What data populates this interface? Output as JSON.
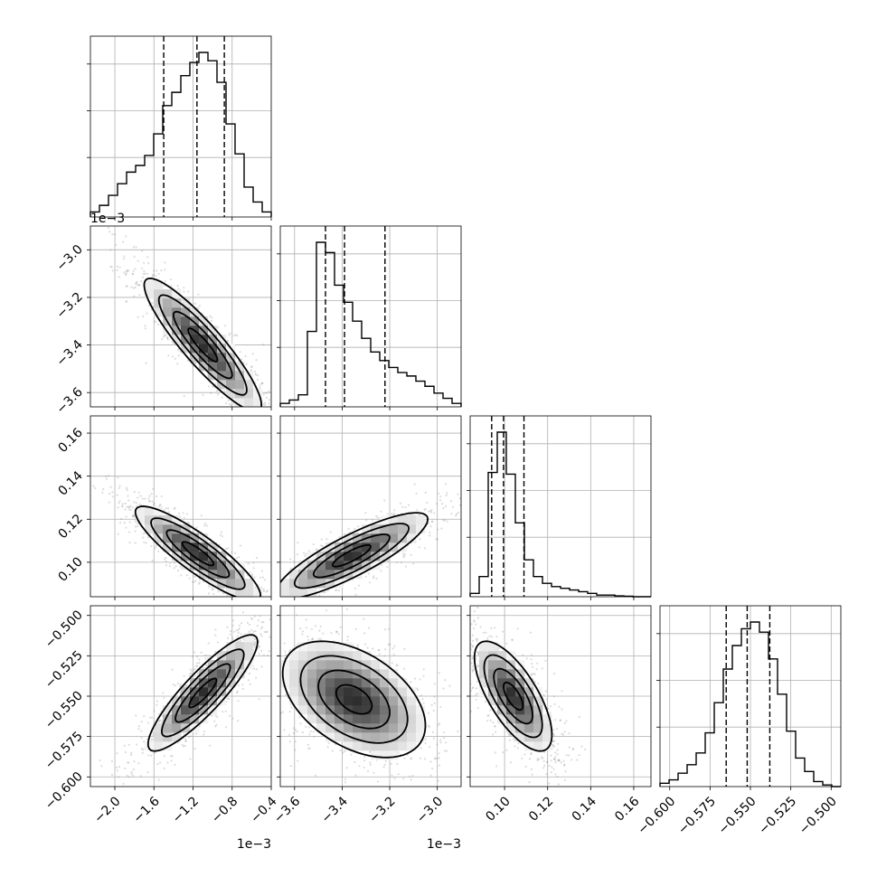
{
  "chart_data": {
    "type": "corner",
    "parameters": [
      {
        "index": 0,
        "range": [
          -2.25,
          -0.4
        ],
        "ticks": [
          -2.0,
          -1.6,
          -1.2,
          -0.8,
          -0.4
        ],
        "tick_labels": [
          "−2.0",
          "−1.6",
          "−1.2",
          "−0.8",
          "−0.4"
        ],
        "offset_text": "1e−3",
        "quantiles": [
          -1.5,
          -1.16,
          -0.88
        ],
        "hist_counts": [
          0.03,
          0.07,
          0.13,
          0.2,
          0.27,
          0.31,
          0.37,
          0.5,
          0.67,
          0.75,
          0.85,
          0.93,
          0.99,
          0.94,
          0.81,
          0.56,
          0.38,
          0.18,
          0.09,
          0.03
        ]
      },
      {
        "index": 1,
        "range": [
          -3.66,
          -2.9
        ],
        "ticks": [
          -3.6,
          -3.4,
          -3.2,
          -3.0
        ],
        "tick_labels": [
          "−3.6",
          "−3.4",
          "−3.2",
          "−3.0"
        ],
        "offset_text": "1e−3",
        "quantiles": [
          -3.47,
          -3.39,
          -3.22
        ],
        "hist_counts": [
          0.02,
          0.04,
          0.07,
          0.44,
          0.96,
          0.9,
          0.71,
          0.61,
          0.5,
          0.4,
          0.32,
          0.27,
          0.23,
          0.2,
          0.18,
          0.15,
          0.12,
          0.08,
          0.05,
          0.02
        ]
      },
      {
        "index": 2,
        "range": [
          0.084,
          0.168
        ],
        "ticks": [
          0.1,
          0.12,
          0.14,
          0.16
        ],
        "tick_labels": [
          "0.10",
          "0.12",
          "0.14",
          "0.16"
        ],
        "offset_text": "",
        "quantiles": [
          0.094,
          0.0995,
          0.109
        ],
        "hist_counts": [
          0.02,
          0.12,
          0.74,
          0.98,
          0.73,
          0.44,
          0.22,
          0.12,
          0.08,
          0.06,
          0.05,
          0.04,
          0.03,
          0.02,
          0.01,
          0.01,
          0.005,
          0.003,
          0,
          0
        ]
      },
      {
        "index": 3,
        "range": [
          -0.606,
          -0.494
        ],
        "ticks": [
          -0.6,
          -0.575,
          -0.55,
          -0.525,
          -0.5
        ],
        "tick_labels": [
          "−0.600",
          "−0.575",
          "−0.550",
          "−0.525",
          "−0.500"
        ],
        "offset_text": "",
        "quantiles": [
          -0.565,
          -0.552,
          -0.538
        ],
        "hist_counts": [
          0.02,
          0.04,
          0.08,
          0.13,
          0.2,
          0.32,
          0.5,
          0.7,
          0.84,
          0.94,
          0.98,
          0.92,
          0.76,
          0.55,
          0.33,
          0.17,
          0.09,
          0.03,
          0.01,
          0
        ]
      }
    ],
    "pairs": [
      {
        "row": 1,
        "col": 0,
        "mean": [
          -1.1,
          -3.4
        ],
        "sd": [
          0.3,
          0.14
        ],
        "rho": -0.9
      },
      {
        "row": 2,
        "col": 0,
        "mean": [
          -1.15,
          0.104
        ],
        "sd": [
          0.32,
          0.011
        ],
        "rho": -0.88
      },
      {
        "row": 2,
        "col": 1,
        "mean": [
          -3.36,
          0.103
        ],
        "sd": [
          0.16,
          0.01
        ],
        "rho": 0.85
      },
      {
        "row": 3,
        "col": 0,
        "mean": [
          -1.1,
          -0.548
        ],
        "sd": [
          0.28,
          0.018
        ],
        "rho": 0.88
      },
      {
        "row": 3,
        "col": 1,
        "mean": [
          -3.35,
          -0.552
        ],
        "sd": [
          0.15,
          0.018
        ],
        "rho": -0.45
      },
      {
        "row": 3,
        "col": 2,
        "mean": [
          0.104,
          -0.55
        ],
        "sd": [
          0.009,
          0.017
        ],
        "rho": -0.7
      }
    ],
    "grid": true,
    "contour_levels": [
      "0.5σ",
      "1σ",
      "1.5σ",
      "2σ"
    ]
  }
}
